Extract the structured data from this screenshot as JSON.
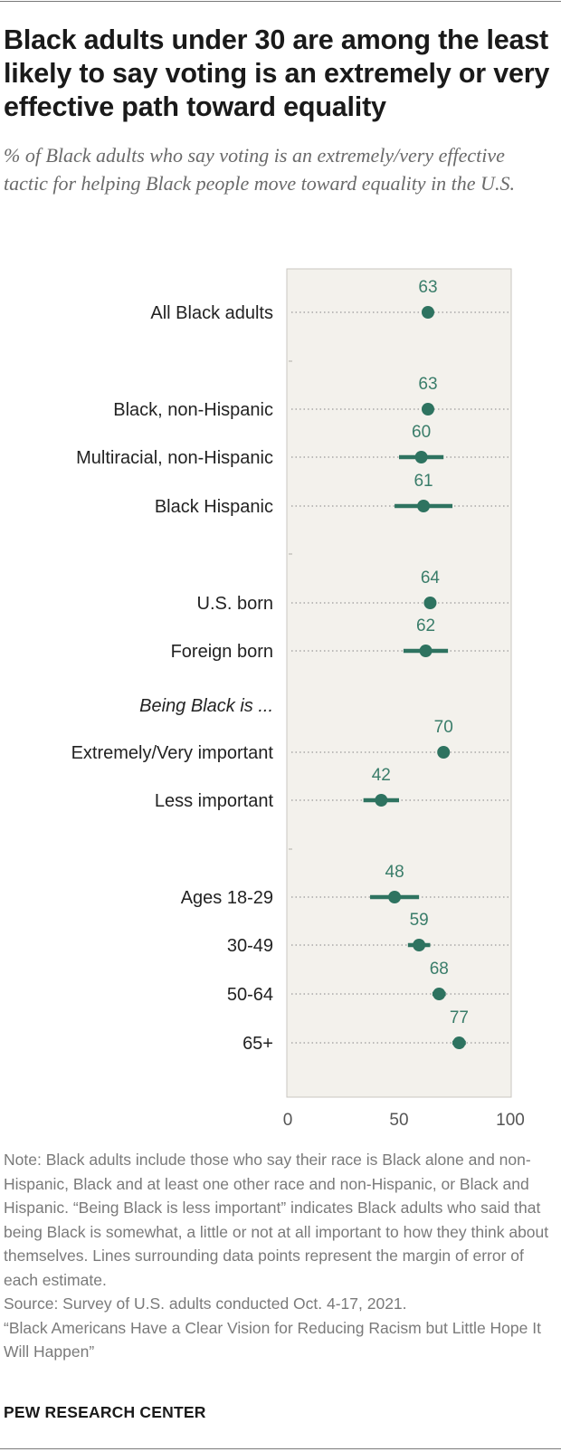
{
  "title": "Black adults under 30 are among the least likely to say voting is an extremely or very effective path toward equality",
  "subtitle": "% of Black adults who say voting is an extremely/very effective tactic for helping Black people move toward equality in the U.S.",
  "colors": {
    "point": "#2e7360",
    "label": "#3a7d6a",
    "panel": "#f3f1ec",
    "dotted": "#9a9a9a"
  },
  "chart_data": {
    "type": "scatter",
    "title": "",
    "xlabel": "",
    "ylabel": "",
    "xlim": [
      0,
      100
    ],
    "x_ticks": [
      "0",
      "50",
      "100"
    ],
    "grid": false,
    "error_bars": true,
    "series": [
      {
        "points": [
          {
            "label": "All Black adults",
            "value": 63,
            "moe": 2
          },
          {
            "label": "Black, non-Hispanic",
            "value": 63,
            "moe": 2
          },
          {
            "label": "Multiracial, non-Hispanic",
            "value": 60,
            "moe": 10
          },
          {
            "label": "Black Hispanic",
            "value": 61,
            "moe": 13
          },
          {
            "label": "U.S. born",
            "value": 64,
            "moe": 2
          },
          {
            "label": "Foreign born",
            "value": 62,
            "moe": 10
          },
          {
            "label": "Being Black is ...",
            "value": null,
            "moe": null
          },
          {
            "label": "Extremely/Very important",
            "value": 70,
            "moe": 2
          },
          {
            "label": "Less important",
            "value": 42,
            "moe": 8
          },
          {
            "label": "Ages 18-29",
            "value": 48,
            "moe": 11
          },
          {
            "label": "30-49",
            "value": 59,
            "moe": 5
          },
          {
            "label": "50-64",
            "value": 68,
            "moe": 3
          },
          {
            "label": "65+",
            "value": 77,
            "moe": 3
          }
        ]
      }
    ]
  },
  "notes": {
    "note": "Note: Black adults include those who say their race is Black alone and non-Hispanic, Black and at least one other race and non-Hispanic, or Black and Hispanic. “Being Black is less important” indicates Black adults who said that being Black is somewhat, a little or not at all important to how they think about themselves. Lines surrounding data points represent the margin of error of each estimate.",
    "source": "Source: Survey of U.S. adults conducted Oct. 4-17, 2021.",
    "report": "“Black Americans Have a Clear Vision for Reducing Racism but Little Hope It Will Happen”"
  },
  "brand": "PEW RESEARCH CENTER"
}
